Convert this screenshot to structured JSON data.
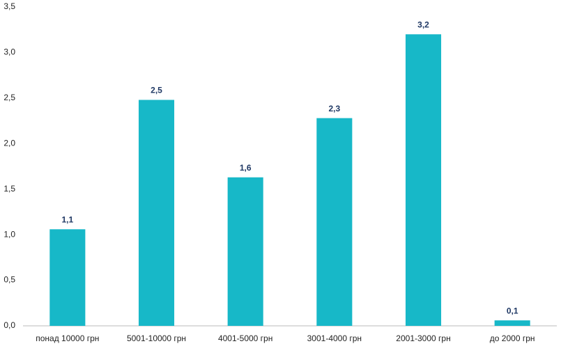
{
  "chart_data": {
    "type": "bar",
    "categories": [
      "понад 10000 грн",
      "5001-10000 грн",
      "4001-5000 грн",
      "3001-4000 грн",
      "2001-3000 грн",
      "до 2000 грн"
    ],
    "values": [
      1.06,
      2.48,
      1.63,
      2.28,
      3.2,
      0.06
    ],
    "value_labels": [
      "1,1",
      "2,5",
      "1,6",
      "2,3",
      "3,2",
      "0,1"
    ],
    "color": "#17b8c8",
    "ylim": [
      0,
      3.5
    ],
    "yticks": [
      {
        "value": 0,
        "label": "0,0"
      },
      {
        "value": 0.5,
        "label": "0,5"
      },
      {
        "value": 1,
        "label": "1,0"
      },
      {
        "value": 1.5,
        "label": "1,5"
      },
      {
        "value": 2,
        "label": "2,0"
      },
      {
        "value": 2.5,
        "label": "2,5"
      },
      {
        "value": 3,
        "label": "3,0"
      },
      {
        "value": 3.5,
        "label": "3,5"
      }
    ],
    "grid": false
  }
}
